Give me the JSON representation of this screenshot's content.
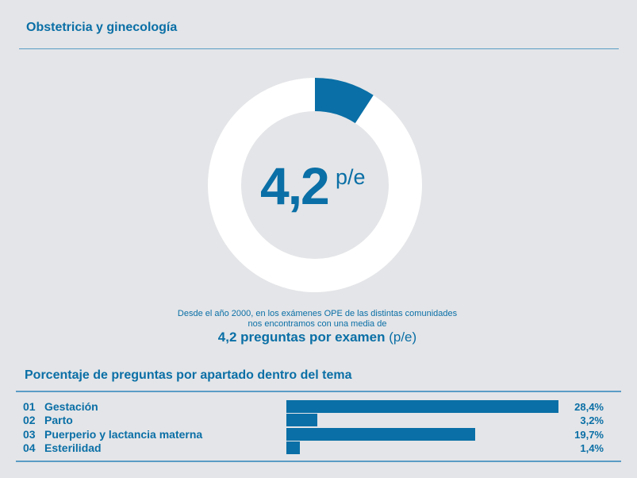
{
  "title": "Obstetricia y ginecología",
  "donut": {
    "value": "4,2",
    "unit": "p/e",
    "segment_fraction": 0.092,
    "accent": "#0a6fa6"
  },
  "description": {
    "line1": "Desde el año 2000, en los exámenes OPE de las distintas comunidades",
    "line2": "nos encontramos con una media de",
    "highlight": "4,2 preguntas por examen",
    "highlight_suffix": "(p/e)"
  },
  "chart_data": {
    "type": "bar",
    "title": "Porcentaje de preguntas por apartado dentro del tema",
    "codes": [
      "01",
      "02",
      "03",
      "04"
    ],
    "categories": [
      "Gestación",
      "Parto",
      "Puerperio y lactancia materna",
      "Esterilidad"
    ],
    "values": [
      28.4,
      3.2,
      19.7,
      1.4
    ],
    "labels": [
      "28,4%",
      "3,2%",
      "19,7%",
      "1,4%"
    ],
    "unit": "%"
  }
}
